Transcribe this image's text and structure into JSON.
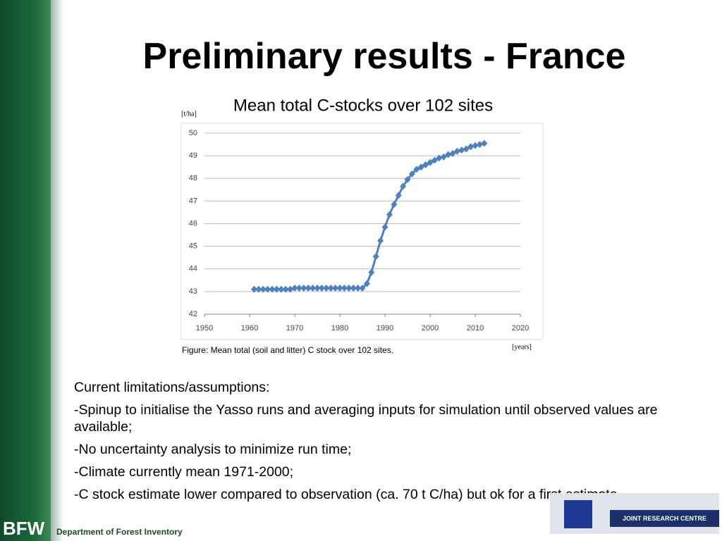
{
  "slide": {
    "title": "Preliminary results - France",
    "heading": "Current limitations/assumptions:",
    "bullets": [
      "-Spinup to initialise the Yasso runs and averaging inputs for simulation until observed values are available;",
      "-No uncertainty analysis to minimize run time;",
      "-Climate currently mean 1971-2000;",
      "-C stock estimate lower compared to observation (ca. 70 t C/ha) but ok for a first estimate"
    ],
    "logo": "BFW",
    "department": "Department of Forest Inventory",
    "partner": "JOINT RESEARCH CENTRE"
  },
  "chart_data": {
    "type": "line",
    "title": "Mean total C-stocks over 102 sites",
    "y_label": "[t/ha]",
    "x_label": "[years]",
    "caption": "Figure: Mean total (soil and litter) C stock over 102 sites.",
    "x": [
      1961,
      1962,
      1963,
      1964,
      1965,
      1966,
      1967,
      1968,
      1969,
      1970,
      1971,
      1972,
      1973,
      1974,
      1975,
      1976,
      1977,
      1978,
      1979,
      1980,
      1981,
      1982,
      1983,
      1984,
      1985,
      1986,
      1987,
      1988,
      1989,
      1990,
      1991,
      1992,
      1993,
      1994,
      1995,
      1996,
      1997,
      1998,
      1999,
      2000,
      2001,
      2002,
      2003,
      2004,
      2005,
      2006,
      2007,
      2008,
      2009,
      2010,
      2011,
      2012
    ],
    "series": [
      {
        "name": "Mean total C-stock",
        "color": "#4f81bd",
        "values": [
          43.1,
          43.1,
          43.1,
          43.1,
          43.1,
          43.1,
          43.1,
          43.1,
          43.1,
          43.15,
          43.15,
          43.15,
          43.15,
          43.15,
          43.15,
          43.15,
          43.15,
          43.15,
          43.15,
          43.15,
          43.15,
          43.15,
          43.15,
          43.15,
          43.15,
          43.35,
          43.85,
          44.55,
          45.25,
          45.85,
          46.4,
          46.85,
          47.25,
          47.65,
          47.95,
          48.2,
          48.4,
          48.5,
          48.6,
          48.7,
          48.8,
          48.9,
          48.95,
          49.05,
          49.1,
          49.2,
          49.25,
          49.3,
          49.4,
          49.45,
          49.5,
          49.55
        ]
      }
    ],
    "xlim": [
      1950,
      2020
    ],
    "xticks": [
      1950,
      1960,
      1970,
      1980,
      1990,
      2000,
      2010,
      2020
    ],
    "ylim": [
      42,
      50
    ],
    "yticks": [
      42,
      43,
      44,
      45,
      46,
      47,
      48,
      49,
      50
    ],
    "grid": true
  }
}
